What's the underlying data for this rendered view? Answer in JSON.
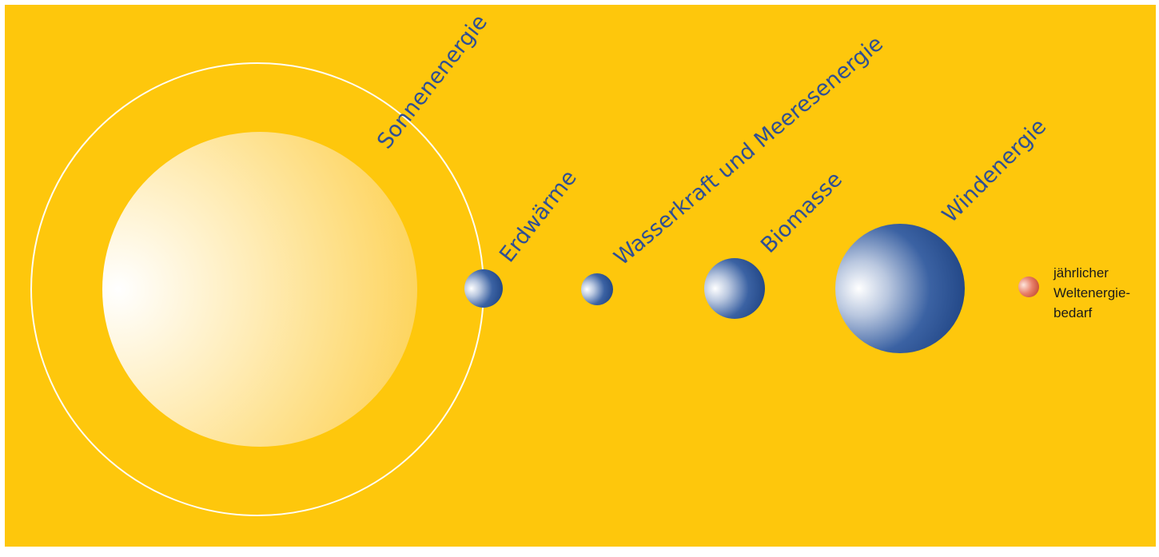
{
  "colors": {
    "background": "#fec70c",
    "frame": "#ffffff",
    "orbit_ring": "#ffffff",
    "label_text": "#2f4f94",
    "sphere_blue": "#1e4a8c",
    "sphere_highlight": "#ffffff",
    "sun_core": "#ffffff",
    "sun_edge": "#fddc7a",
    "demand_sphere": "#d9533a"
  },
  "labels": {
    "sonnenenergie": "Sonnenenergie",
    "erdwaerme": "Erdwärme",
    "wasserkraft": "Wasserkraft und Meeresenergie",
    "biomasse": "Biomasse",
    "windenergie": "Windenergie",
    "weltenergie_line1": "jährlicher",
    "weltenergie_line2": "Weltenergie-",
    "weltenergie_line3": "bedarf"
  }
}
